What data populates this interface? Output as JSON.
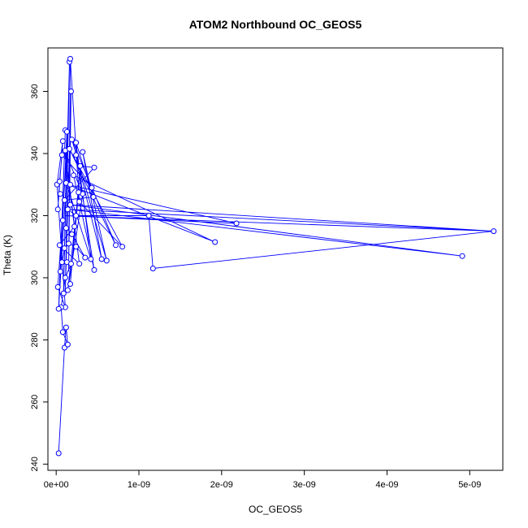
{
  "chart_data": {
    "type": "scatter",
    "title": "ATOM2 Northbound OC_GEOS5",
    "xlabel": "OC_GEOS5",
    "ylabel": "Theta (K)",
    "xlim": [
      -1e-10,
      5.4e-09
    ],
    "ylim": [
      238,
      374
    ],
    "x_ticks": [
      {
        "value": 0,
        "label": "0e+00"
      },
      {
        "value": 1e-09,
        "label": "1e-09"
      },
      {
        "value": 2e-09,
        "label": "2e-09"
      },
      {
        "value": 3e-09,
        "label": "3e-09"
      },
      {
        "value": 4e-09,
        "label": "4e-09"
      },
      {
        "value": 5e-09,
        "label": "5e-09"
      }
    ],
    "y_ticks": [
      {
        "value": 240,
        "label": "240"
      },
      {
        "value": 260,
        "label": "260"
      },
      {
        "value": 280,
        "label": "280"
      },
      {
        "value": 300,
        "label": "300"
      },
      {
        "value": 320,
        "label": "320"
      },
      {
        "value": 340,
        "label": "340"
      },
      {
        "value": 360,
        "label": "360"
      }
    ],
    "grid": false,
    "colors": {
      "series": "#0000ff",
      "axis": "#000000",
      "background": "#ffffff"
    },
    "series": [
      {
        "points": [
          [
            3e-11,
            243.5
          ],
          [
            1e-10,
            277.5
          ],
          [
            1.2e-10,
            284.0
          ],
          [
            8e-11,
            282.5
          ],
          [
            1.4e-10,
            278.5
          ],
          [
            1.1e-10,
            290.5
          ],
          [
            6e-11,
            290.5
          ],
          [
            3e-11,
            290.0
          ],
          [
            9e-11,
            295.0
          ],
          [
            1.4e-10,
            296.0
          ],
          [
            1.7e-10,
            298.0
          ],
          [
            2e-11,
            297.0
          ],
          [
            1.1e-10,
            300.0
          ],
          [
            5e-11,
            302.0
          ],
          [
            7e-11,
            305.0
          ],
          [
            1.3e-10,
            305.0
          ],
          [
            1.8e-10,
            304.5
          ],
          [
            1e-10,
            309.5
          ],
          [
            4e-11,
            310.5
          ],
          [
            1.5e-10,
            311.0
          ],
          [
            2.4e-10,
            310.0
          ],
          [
            3.5e-10,
            306.5
          ],
          [
            4.6e-10,
            302.5
          ],
          [
            5.5e-10,
            306.0
          ],
          [
            6.1e-10,
            305.5
          ],
          [
            7.2e-10,
            310.5
          ],
          [
            8e-10,
            310.0
          ],
          [
            2.8e-10,
            304.5
          ],
          [
            4.2e-10,
            306.0
          ],
          [
            1.9e-10,
            314.0
          ],
          [
            1.2e-10,
            316.0
          ],
          [
            2.2e-10,
            316.5
          ],
          [
            2e-11,
            322.0
          ],
          [
            8e-11,
            318.5
          ],
          [
            1.4e-10,
            322.0
          ],
          [
            1.7e-10,
            323.5
          ],
          [
            2.4e-10,
            320.0
          ],
          [
            1.12e-09,
            320.0
          ],
          [
            1.17e-09,
            303.0
          ],
          [
            1.92e-09,
            311.5
          ],
          [
            2.18e-09,
            317.5
          ],
          [
            4.91e-09,
            307.0
          ],
          [
            5.29e-09,
            315.0
          ],
          [
            4.5e-10,
            326.0
          ],
          [
            3.2e-10,
            327.0
          ],
          [
            2.7e-10,
            327.5
          ],
          [
            2.8e-10,
            324.5
          ],
          [
            1e-10,
            325.0
          ],
          [
            5e-11,
            327.0
          ],
          [
            1e-11,
            330.0
          ],
          [
            4e-11,
            331.0
          ],
          [
            1.2e-10,
            330.5
          ],
          [
            1.7e-10,
            330.0
          ],
          [
            2.1e-10,
            333.0
          ],
          [
            2.9e-10,
            336.0
          ],
          [
            4.6e-10,
            335.5
          ],
          [
            4.3e-10,
            329.0
          ],
          [
            2.4e-10,
            339.5
          ],
          [
            3.2e-10,
            340.5
          ],
          [
            7e-11,
            339.5
          ],
          [
            1.1e-10,
            341.0
          ],
          [
            1.6e-10,
            341.5
          ],
          [
            8e-11,
            344.0
          ],
          [
            1.9e-10,
            344.5
          ],
          [
            2.4e-10,
            343.5
          ],
          [
            1.1e-10,
            347.5
          ],
          [
            1.3e-10,
            347.0
          ],
          [
            1.8e-10,
            360.0
          ],
          [
            1.6e-10,
            369.5
          ],
          [
            1.7e-10,
            370.5
          ]
        ],
        "path": [
          [
            3e-11,
            243.5
          ],
          [
            1e-10,
            277.5
          ],
          [
            1.2e-10,
            284.0
          ],
          [
            1.4e-10,
            278.5
          ],
          [
            8e-11,
            282.5
          ],
          [
            6e-11,
            290.5
          ],
          [
            1.1e-10,
            300.0
          ],
          [
            1.8e-10,
            304.5
          ],
          [
            1.3e-10,
            305.0
          ],
          [
            7e-11,
            305.0
          ],
          [
            1e-10,
            309.5
          ],
          [
            1.5e-10,
            311.0
          ],
          [
            2.4e-10,
            310.0
          ],
          [
            3.5e-10,
            306.5
          ],
          [
            1.9e-10,
            314.0
          ],
          [
            1.2e-10,
            316.0
          ],
          [
            1.4e-10,
            322.0
          ],
          [
            2.4e-10,
            320.0
          ],
          [
            1.12e-09,
            320.0
          ],
          [
            1.17e-09,
            303.0
          ],
          [
            5.29e-09,
            315.0
          ],
          [
            1.7e-10,
            323.5
          ],
          [
            4.91e-09,
            307.0
          ],
          [
            1.6e-10,
            322.0
          ],
          [
            5.29e-09,
            315.0
          ],
          [
            1.1e-10,
            320.0
          ],
          [
            2.18e-09,
            317.5
          ],
          [
            1.4e-10,
            330.0
          ],
          [
            1.92e-09,
            311.5
          ],
          [
            2.1e-10,
            333.0
          ],
          [
            4.6e-10,
            302.5
          ],
          [
            2.4e-10,
            339.5
          ],
          [
            5.5e-10,
            306.0
          ],
          [
            3.2e-10,
            340.5
          ],
          [
            6.1e-10,
            305.5
          ],
          [
            1.9e-10,
            344.5
          ],
          [
            7.2e-10,
            310.5
          ],
          [
            1.6e-10,
            341.5
          ],
          [
            8e-10,
            310.0
          ],
          [
            2.8e-10,
            324.5
          ],
          [
            1.7e-10,
            370.5
          ],
          [
            1.5e-10,
            302.0
          ],
          [
            1.8e-10,
            360.0
          ],
          [
            1.1e-10,
            295.0
          ],
          [
            1.6e-10,
            369.5
          ],
          [
            9e-11,
            296.0
          ],
          [
            1.3e-10,
            347.0
          ],
          [
            5e-11,
            302.0
          ],
          [
            1.1e-10,
            347.5
          ],
          [
            3e-11,
            290.0
          ],
          [
            1.2e-10,
            330.5
          ],
          [
            4.2e-10,
            306.0
          ],
          [
            2.4e-10,
            343.5
          ],
          [
            4.5e-10,
            326.0
          ],
          [
            1e-10,
            325.0
          ],
          [
            4.6e-10,
            335.5
          ],
          [
            2.9e-10,
            336.0
          ],
          [
            1.7e-10,
            298.0
          ],
          [
            2.7e-10,
            327.5
          ],
          [
            1.4e-10,
            296.0
          ],
          [
            3.2e-10,
            327.0
          ],
          [
            1e-10,
            341.0
          ],
          [
            2.2e-10,
            316.5
          ],
          [
            4e-11,
            310.5
          ],
          [
            2.8e-10,
            304.5
          ],
          [
            1.2e-10,
            338.0
          ],
          [
            4.3e-10,
            329.0
          ],
          [
            7e-11,
            339.5
          ],
          [
            4e-11,
            331.0
          ],
          [
            2e-11,
            322.0
          ],
          [
            8e-11,
            344.0
          ],
          [
            1e-11,
            330.0
          ],
          [
            1.1e-10,
            290.5
          ],
          [
            2e-11,
            297.0
          ],
          [
            1.4e-10,
            345.0
          ]
        ]
      }
    ]
  }
}
